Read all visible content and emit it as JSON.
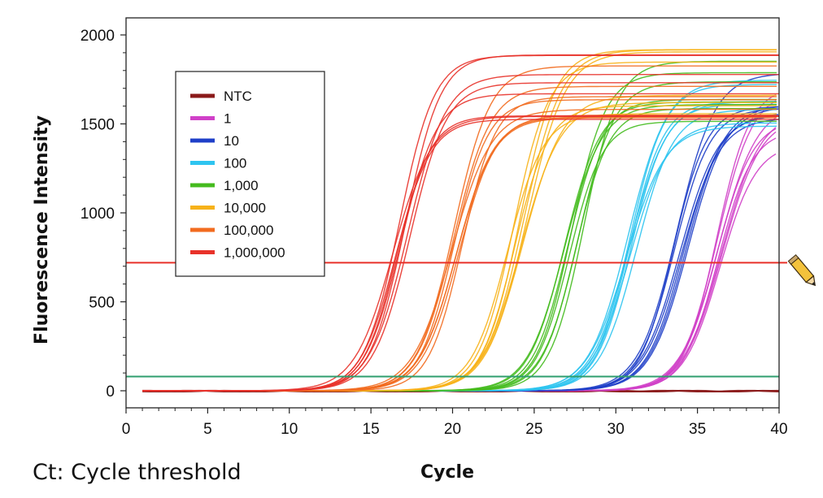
{
  "chart_data": {
    "type": "line",
    "xlabel": "Cycle",
    "ylabel": "Fluorescence Intensity",
    "xlim": [
      0,
      40
    ],
    "ylim": [
      -100,
      2100
    ],
    "x_ticks": [
      0,
      5,
      10,
      15,
      20,
      25,
      30,
      35,
      40
    ],
    "y_ticks": [
      0,
      500,
      1000,
      1500,
      2000
    ],
    "grid": false,
    "legend_position": "top-left",
    "series": [
      {
        "name": "NTC",
        "color": "#8b1a1a",
        "ct": null,
        "plateau": 0,
        "replicates": 4
      },
      {
        "name": "1",
        "color": "#d040c8",
        "ct": 36.3,
        "plateau": 1550,
        "replicates": 8
      },
      {
        "name": "10",
        "color": "#1f3fc8",
        "ct": 33.7,
        "plateau": 1620,
        "replicates": 8
      },
      {
        "name": "100",
        "color": "#2ec4f0",
        "ct": 30.6,
        "plateau": 1650,
        "replicates": 8
      },
      {
        "name": "1,000",
        "color": "#44bb1e",
        "ct": 27.1,
        "plateau": 1680,
        "replicates": 8
      },
      {
        "name": "10,000",
        "color": "#f7b21a",
        "ct": 23.6,
        "plateau": 1760,
        "replicates": 8
      },
      {
        "name": "100,000",
        "color": "#f26b1f",
        "ct": 20.1,
        "plateau": 1720,
        "replicates": 8
      },
      {
        "name": "1,000,000",
        "color": "#e8322a",
        "ct": 16.6,
        "plateau": 1720,
        "replicates": 8
      }
    ],
    "threshold_lines": [
      {
        "y": 720,
        "color": "#e8322a"
      },
      {
        "y": 80,
        "color": "#2e9e6e"
      }
    ]
  },
  "footnote": "Ct: Cycle threshold"
}
